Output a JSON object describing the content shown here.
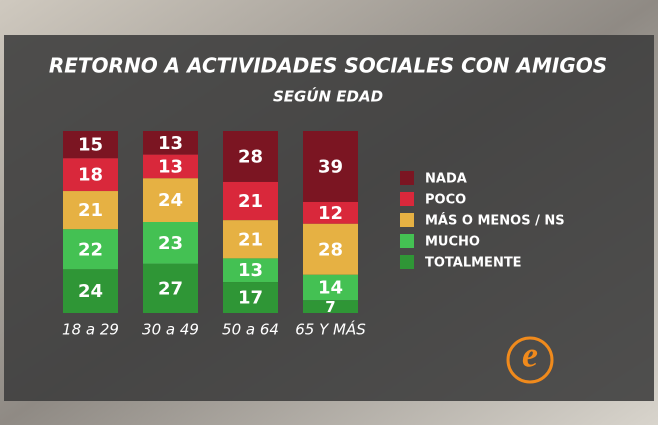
{
  "logo": "e",
  "chart_data": {
    "type": "bar",
    "stacked": true,
    "title": "RETORNO A ACTIVIDADES SOCIALES CON AMIGOS",
    "subtitle": "SEGÚN EDAD",
    "categories": [
      "18 a 29",
      "30 a 49",
      "50 a 64",
      "65 Y MÁS"
    ],
    "series": [
      {
        "name": "NADA",
        "color": "#7b1522",
        "values": [
          15,
          13,
          28,
          39
        ]
      },
      {
        "name": "POCO",
        "color": "#d9283b",
        "values": [
          18,
          13,
          21,
          12
        ]
      },
      {
        "name": "MÁS O MENOS / NS",
        "color": "#e6b143",
        "values": [
          21,
          24,
          21,
          28
        ]
      },
      {
        "name": "MUCHO",
        "color": "#44c153",
        "values": [
          22,
          23,
          13,
          14
        ]
      },
      {
        "name": "TOTALMENTE",
        "color": "#2f9636",
        "values": [
          24,
          27,
          17,
          7
        ]
      }
    ]
  }
}
